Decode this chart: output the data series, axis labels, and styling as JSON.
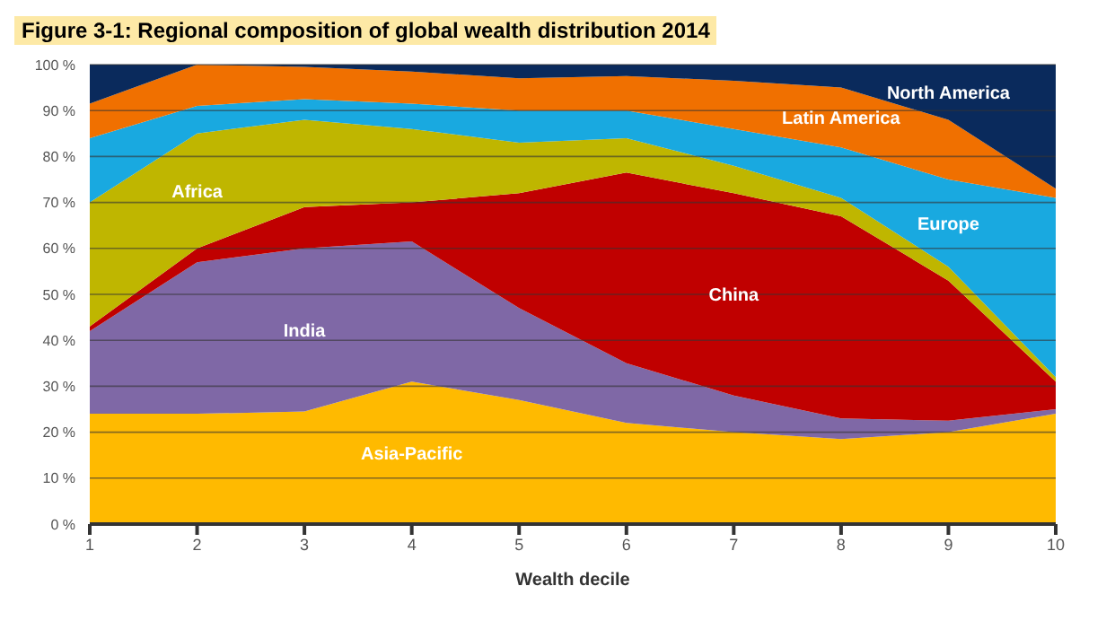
{
  "chart_data": {
    "type": "area",
    "title": "Figure 3-1: Regional composition of global wealth distribution 2014",
    "xlabel": "Wealth decile",
    "stacked": true,
    "grid": "y",
    "legend": false,
    "x": [
      1,
      2,
      3,
      4,
      5,
      6,
      7,
      8,
      9,
      10
    ],
    "xlim": [
      1,
      10
    ],
    "xticks": [
      1,
      2,
      3,
      4,
      5,
      6,
      7,
      8,
      9,
      10
    ],
    "ylim": [
      0,
      100
    ],
    "yticks": [
      {
        "value": 0,
        "label": "0 %"
      },
      {
        "value": 10,
        "label": "10 %"
      },
      {
        "value": 20,
        "label": "20 %"
      },
      {
        "value": 30,
        "label": "30 %"
      },
      {
        "value": 40,
        "label": "40 %"
      },
      {
        "value": 50,
        "label": "50 %"
      },
      {
        "value": 60,
        "label": "60 %"
      },
      {
        "value": 70,
        "label": "70 %"
      },
      {
        "value": 80,
        "label": "80 %"
      },
      {
        "value": 90,
        "label": "90 %"
      },
      {
        "value": 100,
        "label": "100 %"
      }
    ],
    "series": [
      {
        "name": "Asia-Pacific",
        "color": "#ffba00",
        "values": [
          24,
          24,
          24.5,
          31,
          27,
          22,
          20,
          18.5,
          20,
          24
        ]
      },
      {
        "name": "India",
        "color": "#7f68a6",
        "values": [
          18,
          33,
          35.5,
          30.5,
          20,
          13,
          8,
          4.5,
          2.5,
          1
        ]
      },
      {
        "name": "China",
        "color": "#c00000",
        "values": [
          1,
          3,
          9,
          8.5,
          25,
          41.5,
          44,
          44,
          30.5,
          6
        ]
      },
      {
        "name": "Africa",
        "color": "#bfb600",
        "values": [
          27,
          25,
          19,
          16,
          11,
          7.5,
          6,
          4,
          3,
          1
        ]
      },
      {
        "name": "Europe",
        "color": "#19a9e0",
        "values": [
          14,
          6,
          4.5,
          5.5,
          7,
          6,
          8,
          11,
          19,
          39
        ]
      },
      {
        "name": "Latin America",
        "color": "#f07000",
        "values": [
          7.5,
          9,
          7,
          7,
          7,
          7.5,
          10.5,
          13,
          13,
          2
        ]
      },
      {
        "name": "North America",
        "color": "#0a2a5c",
        "values": [
          8.5,
          0,
          0.5,
          1.5,
          3,
          2.5,
          3.5,
          5,
          12,
          27
        ]
      }
    ]
  }
}
